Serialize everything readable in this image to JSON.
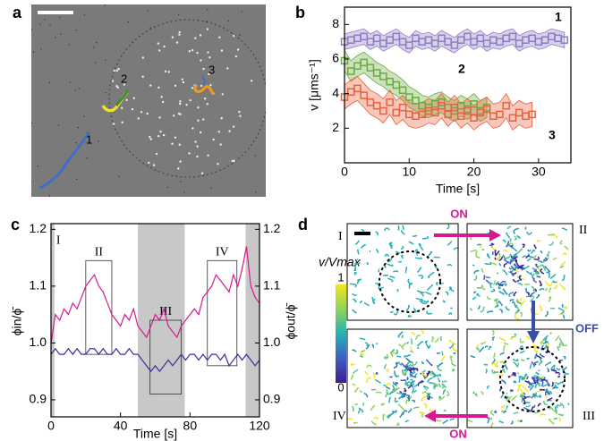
{
  "panel_labels": [
    "a",
    "b",
    "c",
    "d"
  ],
  "panel_a": {
    "trajectory_labels": [
      "1",
      "2",
      "3"
    ]
  },
  "panel_d": {
    "tiles": [
      "I",
      "II",
      "III",
      "IV"
    ],
    "arrows": [
      "ON",
      "OFF",
      "ON"
    ],
    "colorbar": {
      "label": "v/Vmax",
      "max_label": "1",
      "min_label": "0"
    }
  },
  "chart_data": [
    {
      "type": "scatter",
      "xlabel": "Time [s]",
      "ylabel": "v [μms⁻¹]",
      "xlim": [
        0,
        35
      ],
      "xticks": [
        0,
        10,
        20,
        30
      ],
      "ylim": [
        0,
        9
      ],
      "yticks": [
        2,
        4,
        6,
        8
      ],
      "series": [
        {
          "name": "1",
          "color": "#8e7cc3",
          "error": 0.45,
          "x": [
            0,
            1,
            2,
            3,
            4,
            5,
            6,
            7,
            8,
            9,
            10,
            11,
            12,
            13,
            14,
            15,
            16,
            17,
            18,
            19,
            20,
            21,
            22,
            23,
            24,
            25,
            26,
            27,
            28,
            29,
            30,
            31,
            32,
            33,
            34
          ],
          "values": [
            7.0,
            7.1,
            7.2,
            7.3,
            7.0,
            7.2,
            6.9,
            7.1,
            7.3,
            7.0,
            6.8,
            7.2,
            7.0,
            7.1,
            6.9,
            7.2,
            7.0,
            6.8,
            7.1,
            7.3,
            7.0,
            7.2,
            6.9,
            7.1,
            7.0,
            7.2,
            7.3,
            6.9,
            7.1,
            7.2,
            7.0,
            7.1,
            7.3,
            7.2,
            7.1
          ]
        },
        {
          "name": "2",
          "color": "#6aab3f",
          "error": 0.6,
          "x": [
            0,
            1,
            2,
            3,
            4,
            5,
            6,
            7,
            8,
            9,
            10,
            11,
            12,
            13,
            14,
            15,
            16,
            17,
            18,
            19,
            20,
            21,
            22
          ],
          "values": [
            5.9,
            5.3,
            5.6,
            5.8,
            5.5,
            5.2,
            5.0,
            4.7,
            4.5,
            4.2,
            3.8,
            3.6,
            3.3,
            3.2,
            3.4,
            3.5,
            3.2,
            3.0,
            3.3,
            3.1,
            3.4,
            3.0,
            3.2
          ]
        },
        {
          "name": "3",
          "color": "#e8603c",
          "error": 0.7,
          "x": [
            0,
            1,
            2,
            3,
            4,
            5,
            6,
            7,
            8,
            9,
            10,
            11,
            12,
            13,
            14,
            15,
            16,
            17,
            18,
            19,
            20,
            21,
            22,
            23,
            24,
            25,
            26,
            27,
            28,
            29
          ],
          "values": [
            3.8,
            4.1,
            4.3,
            3.9,
            3.5,
            3.3,
            3.0,
            3.5,
            2.9,
            3.2,
            2.8,
            2.7,
            2.8,
            3.0,
            2.9,
            3.3,
            2.8,
            3.2,
            2.7,
            3.0,
            2.6,
            2.9,
            3.1,
            2.7,
            2.8,
            3.3,
            2.6,
            2.9,
            2.7,
            2.8
          ]
        }
      ]
    },
    {
      "type": "line",
      "xlabel": "Time [s]",
      "ylabel": "ϕin/ϕ̄",
      "y2label": "ϕout/ϕ̄",
      "xlim": [
        0,
        120
      ],
      "xticks": [
        0,
        40,
        80,
        120
      ],
      "ylim": [
        0.87,
        1.21
      ],
      "yticks": [
        0.9,
        {
          "value": 1.0,
          "label": "1.0"
        },
        1.1,
        1.2
      ],
      "y2lim": [
        0.87,
        1.21
      ],
      "y2ticks": [
        0.9,
        {
          "value": 1.0,
          "label": "1.0"
        },
        1.1,
        1.2
      ],
      "x": [
        0,
        2.5,
        5,
        7.5,
        10,
        12.5,
        15,
        17.5,
        20,
        22.5,
        25,
        27.5,
        30,
        32.5,
        35,
        37.5,
        40,
        42.5,
        45,
        47.5,
        50,
        52.5,
        55,
        57.5,
        60,
        62.5,
        65,
        67.5,
        70,
        72.5,
        75,
        77.5,
        80,
        82.5,
        85,
        87.5,
        90,
        92.5,
        95,
        97.5,
        100,
        102.5,
        105,
        107.5,
        110,
        112.5,
        115,
        117.5,
        120
      ],
      "series": [
        {
          "color": "#d6198f",
          "axis": "y",
          "values": [
            1.0,
            1.05,
            1.04,
            1.06,
            1.05,
            1.07,
            1.06,
            1.08,
            1.1,
            1.11,
            1.12,
            1.1,
            1.09,
            1.07,
            1.05,
            1.04,
            1.03,
            1.05,
            1.04,
            1.06,
            1.03,
            1.02,
            1.01,
            1.03,
            1.05,
            1.04,
            1.06,
            1.03,
            1.02,
            1.01,
            1.03,
            1.04,
            1.05,
            1.06,
            1.05,
            1.08,
            1.09,
            1.1,
            1.12,
            1.11,
            1.1,
            1.09,
            1.12,
            1.1,
            1.13,
            1.17,
            1.1,
            1.08,
            1.07
          ]
        },
        {
          "color": "#3b2e9e",
          "axis": "y2",
          "values": [
            0.98,
            0.99,
            0.98,
            0.98,
            0.99,
            0.98,
            0.99,
            0.98,
            0.98,
            0.99,
            0.99,
            0.98,
            0.99,
            0.98,
            0.98,
            0.99,
            0.98,
            0.98,
            0.99,
            0.98,
            0.98,
            0.97,
            0.96,
            0.95,
            0.96,
            0.95,
            0.96,
            0.97,
            0.96,
            0.97,
            0.98,
            0.97,
            0.98,
            0.98,
            0.97,
            0.98,
            0.97,
            0.98,
            0.98,
            0.97,
            0.98,
            0.96,
            0.97,
            0.98,
            0.97,
            0.98,
            0.97,
            0.96,
            0.97
          ]
        }
      ],
      "shaded_regions": [
        [
          0,
          2
        ],
        [
          50,
          77
        ],
        [
          112,
          120
        ]
      ],
      "annotations": [
        {
          "text": "I",
          "x": 3,
          "y": 1.18
        }
      ],
      "boxes": [
        {
          "label": "II",
          "x": [
            20,
            35
          ],
          "y": [
            0.98,
            1.145
          ]
        },
        {
          "label": "III",
          "x": [
            57,
            75
          ],
          "y": [
            0.91,
            1.04
          ]
        },
        {
          "label": "IV",
          "x": [
            90,
            107
          ],
          "y": [
            0.96,
            1.145
          ]
        }
      ]
    }
  ]
}
